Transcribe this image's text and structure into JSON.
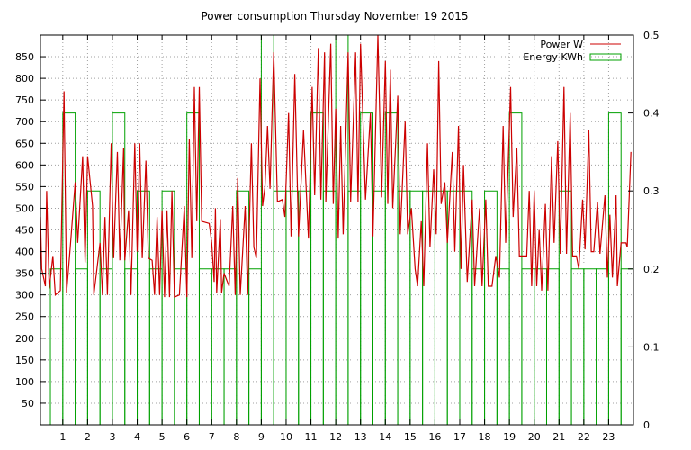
{
  "chart_data": {
    "type": "line",
    "title": "Power consumption Thursday November 19 2015",
    "xlabel": "",
    "ylabel": "",
    "xlim": [
      0.1,
      24.0
    ],
    "ylim": [
      0,
      900
    ],
    "y2lim": [
      0,
      0.5
    ],
    "x_ticks": [
      "1",
      "2",
      "3",
      "4",
      "5",
      "6",
      "7",
      "8",
      "9",
      "10",
      "11",
      "12",
      "13",
      "14",
      "15",
      "16",
      "17",
      "18",
      "19",
      "20",
      "21",
      "22",
      "23"
    ],
    "y_ticks": [
      "50",
      "100",
      "150",
      "200",
      "250",
      "300",
      "350",
      "400",
      "450",
      "500",
      "550",
      "600",
      "650",
      "700",
      "750",
      "800",
      "850"
    ],
    "y2_ticks": [
      "0",
      "0.1",
      "0.2",
      "0.3",
      "0.4",
      "0.5"
    ],
    "grid": true,
    "legend_position": "top-right",
    "colors": {
      "power": "#cc0000",
      "energy": "#00a000"
    },
    "series": [
      {
        "name": "Power W",
        "type": "line",
        "axis": "left",
        "points": [
          [
            0.1,
            480
          ],
          [
            0.15,
            360
          ],
          [
            0.3,
            320
          ],
          [
            0.35,
            540
          ],
          [
            0.45,
            315
          ],
          [
            0.6,
            390
          ],
          [
            0.7,
            300
          ],
          [
            0.9,
            310
          ],
          [
            1.05,
            770
          ],
          [
            1.15,
            305
          ],
          [
            1.3,
            410
          ],
          [
            1.5,
            560
          ],
          [
            1.6,
            420
          ],
          [
            1.8,
            620
          ],
          [
            1.9,
            375
          ],
          [
            2.0,
            620
          ],
          [
            2.2,
            505
          ],
          [
            2.25,
            300
          ],
          [
            2.5,
            420
          ],
          [
            2.6,
            300
          ],
          [
            2.7,
            480
          ],
          [
            2.8,
            300
          ],
          [
            2.95,
            650
          ],
          [
            3.05,
            385
          ],
          [
            3.2,
            630
          ],
          [
            3.3,
            380
          ],
          [
            3.45,
            640
          ],
          [
            3.5,
            380
          ],
          [
            3.65,
            495
          ],
          [
            3.75,
            300
          ],
          [
            3.9,
            650
          ],
          [
            4.0,
            400
          ],
          [
            4.1,
            650
          ],
          [
            4.2,
            385
          ],
          [
            4.35,
            610
          ],
          [
            4.45,
            385
          ],
          [
            4.6,
            380
          ],
          [
            4.7,
            300
          ],
          [
            4.8,
            480
          ],
          [
            4.9,
            300
          ],
          [
            5.0,
            495
          ],
          [
            5.1,
            295
          ],
          [
            5.2,
            495
          ],
          [
            5.3,
            295
          ],
          [
            5.4,
            540
          ],
          [
            5.5,
            295
          ],
          [
            5.7,
            300
          ],
          [
            5.9,
            505
          ],
          [
            6.0,
            295
          ],
          [
            6.1,
            660
          ],
          [
            6.2,
            385
          ],
          [
            6.3,
            780
          ],
          [
            6.4,
            470
          ],
          [
            6.5,
            780
          ],
          [
            6.6,
            470
          ],
          [
            6.9,
            465
          ],
          [
            7.0,
            420
          ],
          [
            7.1,
            330
          ],
          [
            7.15,
            500
          ],
          [
            7.2,
            305
          ],
          [
            7.35,
            475
          ],
          [
            7.4,
            305
          ],
          [
            7.5,
            350
          ],
          [
            7.7,
            320
          ],
          [
            7.85,
            505
          ],
          [
            7.95,
            300
          ],
          [
            8.05,
            570
          ],
          [
            8.15,
            300
          ],
          [
            8.35,
            505
          ],
          [
            8.45,
            300
          ],
          [
            8.6,
            650
          ],
          [
            8.7,
            410
          ],
          [
            8.8,
            385
          ],
          [
            8.95,
            800
          ],
          [
            9.05,
            505
          ],
          [
            9.15,
            550
          ],
          [
            9.25,
            690
          ],
          [
            9.35,
            545
          ],
          [
            9.5,
            860
          ],
          [
            9.65,
            515
          ],
          [
            9.85,
            520
          ],
          [
            9.95,
            480
          ],
          [
            10.1,
            720
          ],
          [
            10.2,
            435
          ],
          [
            10.35,
            810
          ],
          [
            10.5,
            435
          ],
          [
            10.7,
            680
          ],
          [
            10.9,
            430
          ],
          [
            11.05,
            780
          ],
          [
            11.15,
            530
          ],
          [
            11.3,
            870
          ],
          [
            11.4,
            520
          ],
          [
            11.55,
            860
          ],
          [
            11.6,
            515
          ],
          [
            11.8,
            880
          ],
          [
            11.9,
            510
          ],
          [
            12.0,
            730
          ],
          [
            12.1,
            430
          ],
          [
            12.2,
            690
          ],
          [
            12.3,
            440
          ],
          [
            12.5,
            860
          ],
          [
            12.6,
            515
          ],
          [
            12.8,
            860
          ],
          [
            12.9,
            515
          ],
          [
            13.0,
            880
          ],
          [
            13.2,
            520
          ],
          [
            13.4,
            720
          ],
          [
            13.5,
            435
          ],
          [
            13.7,
            900
          ],
          [
            13.85,
            525
          ],
          [
            14.0,
            840
          ],
          [
            14.1,
            510
          ],
          [
            14.2,
            820
          ],
          [
            14.3,
            500
          ],
          [
            14.5,
            760
          ],
          [
            14.6,
            440
          ],
          [
            14.8,
            700
          ],
          [
            14.9,
            440
          ],
          [
            15.05,
            500
          ],
          [
            15.2,
            360
          ],
          [
            15.3,
            320
          ],
          [
            15.45,
            470
          ],
          [
            15.55,
            320
          ],
          [
            15.7,
            650
          ],
          [
            15.8,
            410
          ],
          [
            15.95,
            590
          ],
          [
            16.05,
            440
          ],
          [
            16.15,
            840
          ],
          [
            16.25,
            510
          ],
          [
            16.4,
            560
          ],
          [
            16.5,
            420
          ],
          [
            16.7,
            630
          ],
          [
            16.8,
            400
          ],
          [
            16.95,
            690
          ],
          [
            17.05,
            360
          ],
          [
            17.15,
            600
          ],
          [
            17.3,
            330
          ],
          [
            17.5,
            520
          ],
          [
            17.6,
            320
          ],
          [
            17.8,
            500
          ],
          [
            17.9,
            320
          ],
          [
            18.05,
            520
          ],
          [
            18.15,
            320
          ],
          [
            18.3,
            320
          ],
          [
            18.45,
            390
          ],
          [
            18.6,
            340
          ],
          [
            18.75,
            690
          ],
          [
            18.85,
            420
          ],
          [
            19.05,
            780
          ],
          [
            19.15,
            480
          ],
          [
            19.3,
            640
          ],
          [
            19.4,
            390
          ],
          [
            19.7,
            390
          ],
          [
            19.8,
            540
          ],
          [
            19.9,
            320
          ],
          [
            20.0,
            540
          ],
          [
            20.1,
            320
          ],
          [
            20.2,
            450
          ],
          [
            20.3,
            310
          ],
          [
            20.45,
            510
          ],
          [
            20.55,
            310
          ],
          [
            20.7,
            620
          ],
          [
            20.8,
            420
          ],
          [
            20.95,
            655
          ],
          [
            21.05,
            395
          ],
          [
            21.2,
            780
          ],
          [
            21.3,
            395
          ],
          [
            21.45,
            720
          ],
          [
            21.55,
            390
          ],
          [
            21.7,
            390
          ],
          [
            21.8,
            360
          ],
          [
            21.95,
            520
          ],
          [
            22.05,
            405
          ],
          [
            22.2,
            680
          ],
          [
            22.3,
            400
          ],
          [
            22.4,
            400
          ],
          [
            22.55,
            515
          ],
          [
            22.65,
            395
          ],
          [
            22.85,
            530
          ],
          [
            22.95,
            340
          ],
          [
            23.05,
            485
          ],
          [
            23.15,
            340
          ],
          [
            23.3,
            530
          ],
          [
            23.35,
            320
          ],
          [
            23.5,
            420
          ],
          [
            23.7,
            420
          ],
          [
            23.75,
            410
          ],
          [
            23.9,
            630
          ]
        ]
      },
      {
        "name": "Energy KWh",
        "type": "step",
        "axis": "right",
        "bars": [
          [
            0.5,
            0.2
          ],
          [
            1.0,
            0.4
          ],
          [
            1.5,
            0.2
          ],
          [
            2.0,
            0.3
          ],
          [
            2.5,
            0.2
          ],
          [
            3.0,
            0.4
          ],
          [
            3.5,
            0.2
          ],
          [
            4.0,
            0.3
          ],
          [
            4.5,
            0.2
          ],
          [
            5.0,
            0.3
          ],
          [
            5.5,
            0.2
          ],
          [
            6.0,
            0.4
          ],
          [
            6.5,
            0.2
          ],
          [
            7.0,
            0.2
          ],
          [
            7.5,
            0.2
          ],
          [
            8.0,
            0.3
          ],
          [
            8.5,
            0.2
          ],
          [
            9.0,
            0.5
          ],
          [
            9.5,
            0.3
          ],
          [
            10.0,
            0.3
          ],
          [
            10.5,
            0.3
          ],
          [
            11.0,
            0.4
          ],
          [
            11.5,
            0.3
          ],
          [
            12.0,
            0.5
          ],
          [
            12.5,
            0.3
          ],
          [
            13.0,
            0.4
          ],
          [
            13.5,
            0.3
          ],
          [
            14.0,
            0.4
          ],
          [
            14.5,
            0.3
          ],
          [
            15.0,
            0.3
          ],
          [
            15.5,
            0.3
          ],
          [
            16.0,
            0.3
          ],
          [
            16.5,
            0.3
          ],
          [
            17.0,
            0.3
          ],
          [
            17.5,
            0.2
          ],
          [
            18.0,
            0.3
          ],
          [
            18.5,
            0.2
          ],
          [
            19.0,
            0.4
          ],
          [
            19.5,
            0.2
          ],
          [
            20.0,
            0.2
          ],
          [
            20.5,
            0.2
          ],
          [
            21.0,
            0.3
          ],
          [
            21.5,
            0.2
          ],
          [
            22.0,
            0.2
          ],
          [
            22.5,
            0.2
          ],
          [
            23.0,
            0.4
          ],
          [
            23.5,
            0.2
          ]
        ]
      }
    ]
  }
}
